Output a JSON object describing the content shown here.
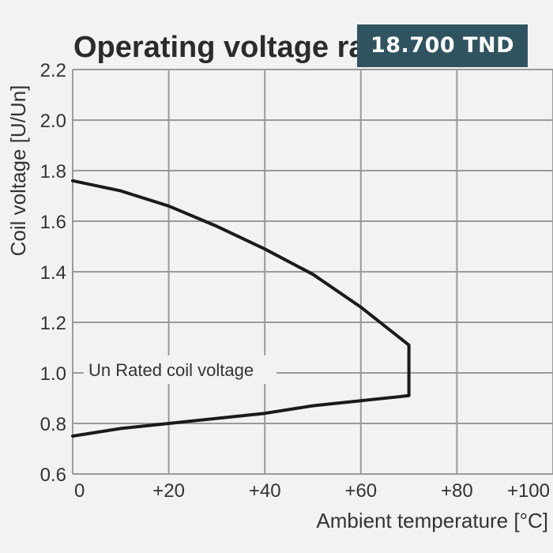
{
  "price_badge": {
    "text": "18.700 TND",
    "background": "#2f5460",
    "color": "#ffffff"
  },
  "chart_data": {
    "type": "line",
    "title": "Operating voltage ran",
    "xlabel": "Ambient temperature [°C]",
    "ylabel": "Coil voltage [U/Un]",
    "xlim": [
      0,
      100
    ],
    "ylim": [
      0.6,
      2.2
    ],
    "x_ticks": [
      0,
      20,
      40,
      60,
      80,
      100
    ],
    "x_tick_labels": [
      "0",
      "+20",
      "+40",
      "+60",
      "+80",
      "+100"
    ],
    "y_ticks": [
      0.6,
      0.8,
      1.0,
      1.2,
      1.4,
      1.6,
      1.8,
      2.0,
      2.2
    ],
    "y_tick_labels": [
      "0.6",
      "0.8",
      "1.0",
      "1.2",
      "1.4",
      "1.6",
      "1.8",
      "2.0",
      "2.2"
    ],
    "grid": true,
    "annotation": "Un Rated coil voltage",
    "series": [
      {
        "x": [
          0,
          10,
          20,
          30,
          40,
          50,
          60,
          70,
          70,
          70,
          60,
          50,
          40,
          30,
          20,
          10,
          0
        ],
        "y": [
          1.76,
          1.72,
          1.66,
          1.58,
          1.49,
          1.39,
          1.26,
          1.11,
          1.0,
          0.91,
          0.89,
          0.87,
          0.84,
          0.82,
          0.8,
          0.78,
          0.75
        ]
      }
    ]
  }
}
